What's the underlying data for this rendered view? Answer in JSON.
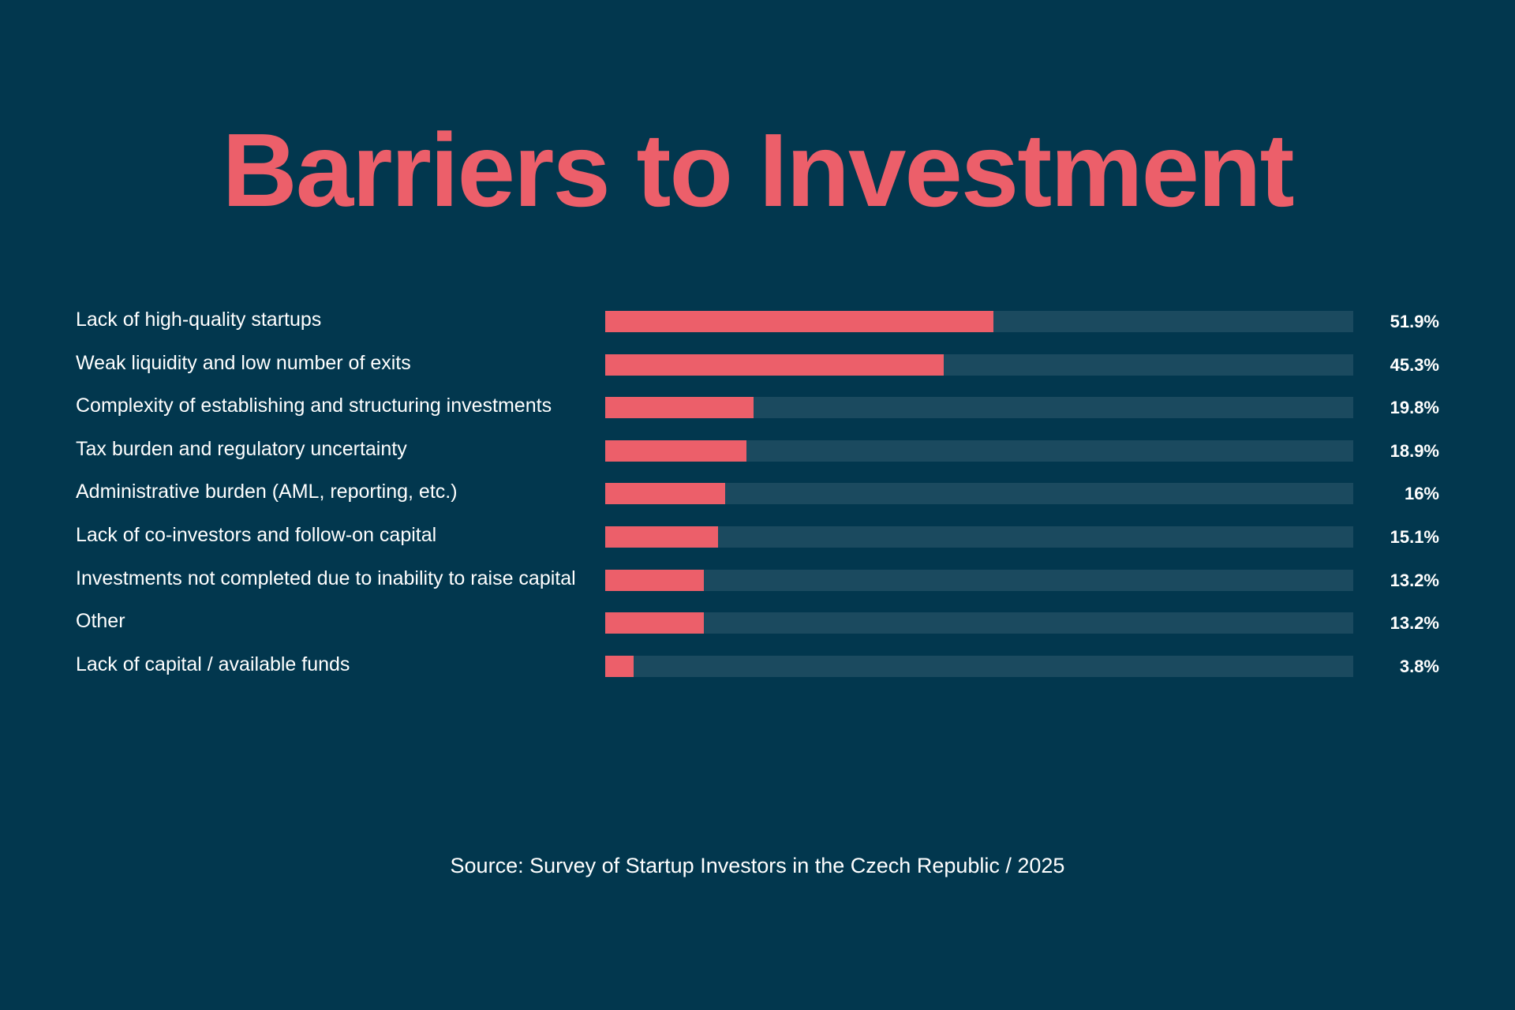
{
  "colors": {
    "background": "#02374e",
    "bar": "#ec5f6a",
    "track": "#1b4a5f",
    "title": "#ec5f6a"
  },
  "chart_data": {
    "type": "bar",
    "orientation": "horizontal",
    "title": "Barriers to Investment",
    "xlim": [
      0,
      100
    ],
    "grid": false,
    "categories": [
      "Lack of high-quality startups",
      "Weak liquidity and low number of exits",
      "Complexity of establishing and structuring investments",
      "Tax burden and regulatory uncertainty",
      "Administrative burden (AML, reporting, etc.)",
      "Lack of co-investors and follow-on capital",
      "Investments not completed due to inability to raise capital",
      "Other",
      "Lack of capital / available funds"
    ],
    "values": [
      51.9,
      45.3,
      19.8,
      18.9,
      16,
      15.1,
      13.2,
      13.2,
      3.8
    ],
    "labels": [
      "51.9%",
      "45.3%",
      "19.8%",
      "18.9%",
      "16%",
      "15.1%",
      "13.2%",
      "13.2%",
      "3.8%"
    ]
  },
  "source": "Source: Survey of Startup Investors in the Czech Republic / 2025"
}
